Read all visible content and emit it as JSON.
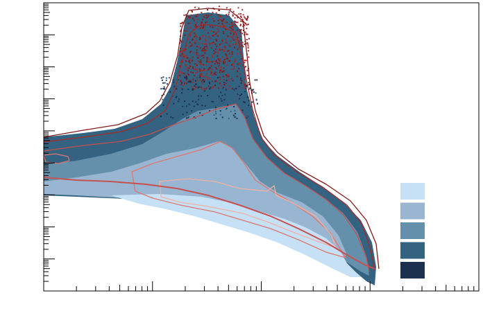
{
  "chart_data": {
    "type": "heatmap",
    "title": "",
    "xlabel": "",
    "ylabel": "",
    "x_scale": "log",
    "y_scale": "log",
    "x_decades_shown": 4,
    "y_decades_shown": 9,
    "tick_labels_visible": false,
    "grid": false,
    "legend": {
      "placement": "bottom-right",
      "entries_labeled": false,
      "swatch_colors": [
        "#c6e0f6",
        "#98b6d1",
        "#6590ac",
        "#336380",
        "#1b314e"
      ]
    },
    "density_shading": {
      "colors_light_to_dark": [
        "#c6e0f6",
        "#98b6d1",
        "#6590ac",
        "#336380",
        "#1b314e"
      ]
    },
    "contour_colors": [
      "#f0b0a4",
      "#dd7670",
      "#c65050",
      "#a52a2a",
      "#801818"
    ]
  }
}
